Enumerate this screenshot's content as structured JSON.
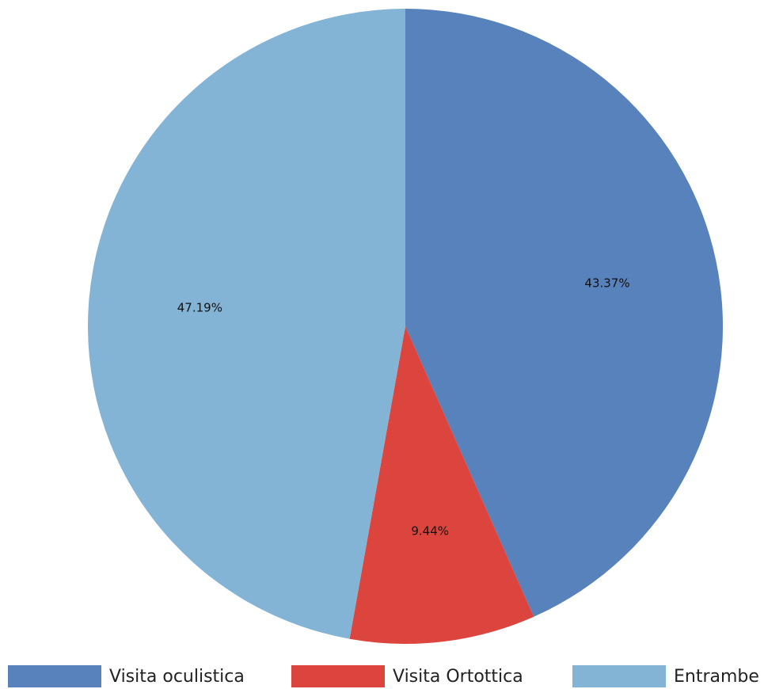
{
  "chart_data": {
    "type": "pie",
    "title": "",
    "slices": [
      {
        "label": "Visita oculistica",
        "value": 43.37,
        "display": "43.37%",
        "color": "#5882bc"
      },
      {
        "label": "Visita Ortottica",
        "value": 9.44,
        "display": "9.44%",
        "color": "#dc453d"
      },
      {
        "label": "Entrambe",
        "value": 47.19,
        "display": "47.19%",
        "color": "#83b4d5"
      }
    ],
    "start_angle": "12 o'clock",
    "direction": "clockwise",
    "legend_position": "bottom"
  }
}
